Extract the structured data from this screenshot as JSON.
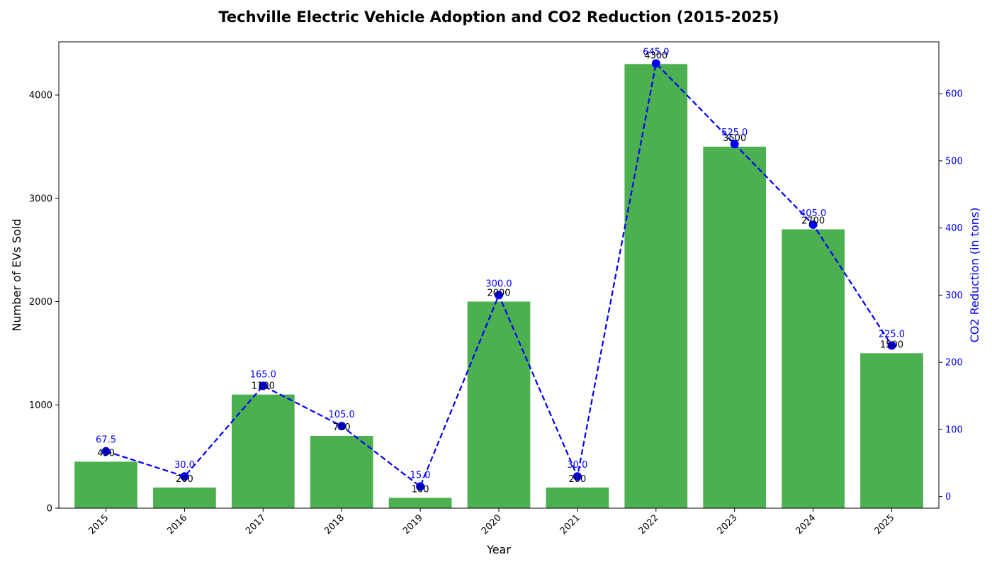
{
  "chart_data": {
    "type": "bar",
    "title": "Techville Electric Vehicle Adoption and CO2 Reduction (2015-2025)",
    "xlabel": "Year",
    "ylabel": "Number of EVs Sold",
    "y2label": "CO2 Reduction (in tons)",
    "categories": [
      "2015",
      "2016",
      "2017",
      "2018",
      "2019",
      "2020",
      "2021",
      "2022",
      "2023",
      "2024",
      "2025"
    ],
    "series": [
      {
        "type": "bar",
        "axis": "left",
        "values": [
          450,
          200,
          1100,
          700,
          100,
          2000,
          200,
          4300,
          3500,
          2700,
          1500
        ],
        "labels": [
          "450",
          "200",
          "1100",
          "700",
          "100",
          "2000",
          "200",
          "4300",
          "3500",
          "2700",
          "1500"
        ]
      },
      {
        "type": "line",
        "axis": "right",
        "values": [
          67.5,
          30.0,
          165.0,
          105.0,
          15.0,
          300.0,
          30.0,
          645.0,
          525.0,
          405.0,
          225.0
        ],
        "labels": [
          "67.5",
          "30.0",
          "165.0",
          "105.0",
          "15.0",
          "300.0",
          "30.0",
          "645.0",
          "525.0",
          "405.0",
          "225.0"
        ]
      }
    ],
    "ylim": [
      0,
      4515
    ],
    "y2lim": [
      -17.25,
      677.25
    ],
    "yticks": [
      0,
      1000,
      2000,
      3000,
      4000
    ],
    "y2ticks": [
      0,
      100,
      200,
      300,
      400,
      500,
      600
    ],
    "colors": {
      "bar": "#4caf50",
      "line": "#0000ff",
      "axis_right": "#0000ff"
    },
    "line_style": "dashed",
    "marker": "circle",
    "grid": false,
    "legend": "none"
  }
}
